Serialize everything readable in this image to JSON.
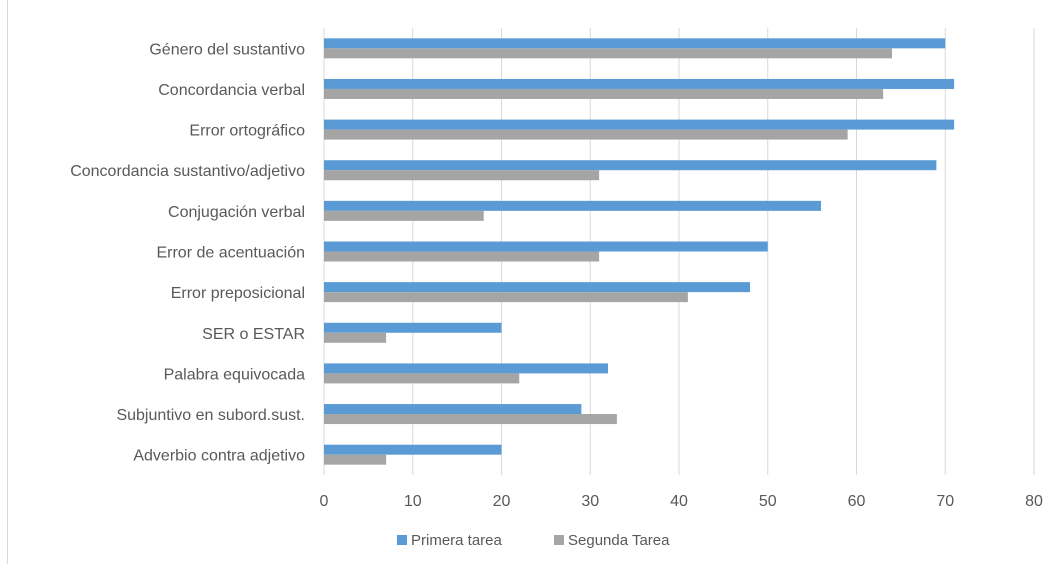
{
  "chart_data": {
    "type": "bar",
    "orientation": "horizontal",
    "title": "",
    "xlabel": "",
    "ylabel": "",
    "categories": [
      "Género del sustantivo",
      "Concordancia verbal",
      "Error ortográfico",
      "Concordancia sustantivo/adjetivo",
      "Conjugación verbal",
      "Error de acentuación",
      "Error preposicional",
      "SER o ESTAR",
      "Palabra equivocada",
      "Subjuntivo en subord.sust.",
      "Adverbio contra adjetivo"
    ],
    "series": [
      {
        "name": "Primera tarea",
        "color": "#5b9bd5",
        "values": [
          70,
          71,
          71,
          69,
          56,
          50,
          48,
          20,
          32,
          29,
          20
        ]
      },
      {
        "name": "Segunda Tarea",
        "color": "#a5a5a5",
        "values": [
          64,
          63,
          59,
          31,
          18,
          31,
          41,
          7,
          22,
          33,
          7
        ]
      }
    ],
    "xlim": [
      0,
      80
    ],
    "ticks": [
      "0",
      "10",
      "20",
      "30",
      "40",
      "50",
      "60",
      "70",
      "80"
    ],
    "grid": true,
    "legend": "bottom"
  }
}
